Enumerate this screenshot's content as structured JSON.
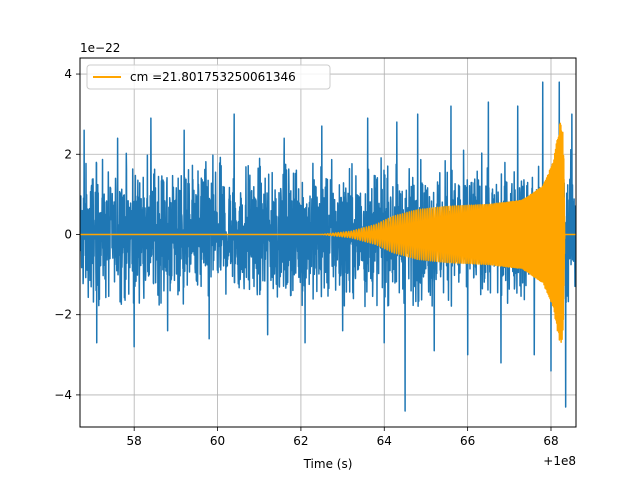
{
  "chart_data": {
    "type": "line",
    "title": "",
    "xlabel": "Time (s)",
    "ylabel": "",
    "x_offset_text": "+1e8",
    "y_offset_text": "1e−22",
    "xlim": [
      56.7,
      68.6
    ],
    "ylim": [
      -4.8,
      4.4
    ],
    "x_ticks": [
      58,
      60,
      62,
      64,
      66,
      68
    ],
    "y_ticks": [
      -4,
      -2,
      0,
      2,
      4
    ],
    "x_tick_labels": [
      "58",
      "60",
      "62",
      "64",
      "66",
      "68"
    ],
    "y_tick_labels": [
      "−4",
      "−2",
      "0",
      "2",
      "4"
    ],
    "grid": true,
    "legend_position": "upper-left",
    "series": [
      {
        "label": "",
        "color": "#1f77b4",
        "kind": "noisy-strain",
        "x_range": [
          56.7,
          68.6
        ],
        "typical_envelope": [
          -1.8,
          2.2
        ],
        "peaks": [
          {
            "x": 56.8,
            "y": 2.6
          },
          {
            "x": 57.1,
            "y": -2.7
          },
          {
            "x": 57.6,
            "y": 2.4
          },
          {
            "x": 58.0,
            "y": -2.8
          },
          {
            "x": 58.4,
            "y": 2.9
          },
          {
            "x": 58.8,
            "y": -2.4
          },
          {
            "x": 59.2,
            "y": 2.6
          },
          {
            "x": 59.8,
            "y": -2.6
          },
          {
            "x": 60.4,
            "y": 3.0
          },
          {
            "x": 61.2,
            "y": -2.5
          },
          {
            "x": 61.6,
            "y": 2.4
          },
          {
            "x": 62.1,
            "y": -2.7
          },
          {
            "x": 62.5,
            "y": 2.7
          },
          {
            "x": 63.0,
            "y": -2.4
          },
          {
            "x": 63.6,
            "y": 2.9
          },
          {
            "x": 64.0,
            "y": -2.7
          },
          {
            "x": 64.3,
            "y": 2.8
          },
          {
            "x": 64.5,
            "y": -4.4
          },
          {
            "x": 64.8,
            "y": 3.0
          },
          {
            "x": 65.2,
            "y": -2.9
          },
          {
            "x": 65.6,
            "y": 3.2
          },
          {
            "x": 66.0,
            "y": -3.0
          },
          {
            "x": 66.5,
            "y": 3.3
          },
          {
            "x": 66.8,
            "y": -3.2
          },
          {
            "x": 67.2,
            "y": 3.2
          },
          {
            "x": 67.6,
            "y": -3.0
          },
          {
            "x": 67.8,
            "y": 3.8
          },
          {
            "x": 68.0,
            "y": -3.4
          },
          {
            "x": 68.2,
            "y": 3.8
          },
          {
            "x": 68.35,
            "y": -4.3
          },
          {
            "x": 68.5,
            "y": 3.0
          }
        ]
      },
      {
        "label": "cm =21.801753250061346",
        "color": "#ffa500",
        "kind": "chirp",
        "x_range": [
          56.7,
          68.6
        ],
        "envelope": [
          {
            "x": 62.5,
            "y": 0.0
          },
          {
            "x": 63.2,
            "y": 0.08
          },
          {
            "x": 63.8,
            "y": 0.25
          },
          {
            "x": 64.2,
            "y": 0.45
          },
          {
            "x": 64.8,
            "y": 0.62
          },
          {
            "x": 65.5,
            "y": 0.7
          },
          {
            "x": 66.5,
            "y": 0.75
          },
          {
            "x": 67.3,
            "y": 0.85
          },
          {
            "x": 67.8,
            "y": 1.2
          },
          {
            "x": 68.05,
            "y": 1.8
          },
          {
            "x": 68.22,
            "y": 2.8
          },
          {
            "x": 68.3,
            "y": 2.5
          },
          {
            "x": 68.33,
            "y": 0.0
          }
        ],
        "merger_time": 68.32
      }
    ]
  }
}
